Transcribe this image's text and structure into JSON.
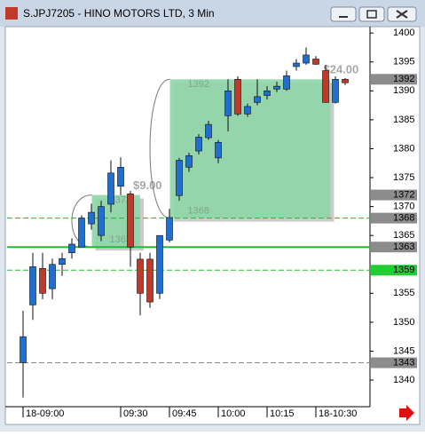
{
  "chart_data": {
    "type": "candlestick",
    "title": "S.JPJ7205 - HINO MOTORS LTD, 3 Min",
    "categories": [
      "18-09:00",
      null,
      null,
      null,
      null,
      null,
      null,
      null,
      null,
      null,
      "09:30",
      null,
      null,
      null,
      null,
      "09:45",
      null,
      null,
      null,
      null,
      "10:00",
      null,
      null,
      null,
      null,
      "10:15",
      null,
      null,
      null,
      null,
      "18-10:30",
      null,
      null,
      null
    ],
    "open": [
      1343,
      1353,
      1359.3,
      1355.8,
      1360,
      1362,
      1363,
      1367,
      1365,
      1370.4,
      1373.5,
      1372.2,
      1360.9,
      1360.9,
      1355,
      1364.2,
      1371.9,
      1376.8,
      1379.6,
      1381.9,
      1378.4,
      1385.7,
      1392,
      1386,
      1388,
      1389.2,
      1390.3,
      1390.3,
      1394.2,
      1394.8,
      1395.5,
      1393.5,
      1388,
      1392
    ],
    "high": [
      1352,
      1362,
      1362,
      1361,
      1362,
      1364.5,
      1368.5,
      1370.5,
      1371,
      1378,
      1378.5,
      1372.7,
      1362,
      1362,
      1365,
      1369.6,
      1378.4,
      1379.3,
      1382.5,
      1384.8,
      1381.5,
      1392,
      1392.5,
      1387.8,
      1392,
      1390.8,
      1391.6,
      1393.5,
      1395.5,
      1397.5,
      1396,
      1394.5,
      1392.5,
      1392.2
    ],
    "low": [
      1337,
      1350.4,
      1354,
      1354,
      1358,
      1361,
      1363,
      1366,
      1364,
      1369,
      1372,
      1359.6,
      1351.2,
      1352.5,
      1354,
      1363.8,
      1371,
      1376,
      1379,
      1381.5,
      1377.5,
      1383,
      1385.7,
      1385.5,
      1387.5,
      1388.5,
      1389.8,
      1390,
      1393.5,
      1394.5,
      1394.5,
      1388,
      1387.8,
      1391
    ],
    "close": [
      1347.5,
      1359.6,
      1355,
      1360,
      1361,
      1363.5,
      1368,
      1369,
      1370,
      1375.8,
      1376.8,
      1363,
      1355,
      1353.5,
      1365,
      1368.1,
      1378,
      1378.8,
      1382,
      1384.2,
      1381.1,
      1390,
      1386,
      1387.3,
      1389,
      1390,
      1390.8,
      1392.6,
      1394.8,
      1396.2,
      1394.6,
      1388,
      1392,
      1391.4
    ],
    "up_color": "#1f6fd1",
    "down_color": "#c0392b",
    "ylim": [
      1335.4,
      1401.1
    ],
    "yticks": [
      1340,
      1345,
      1350,
      1355,
      1365,
      1370,
      1375,
      1380,
      1385,
      1390,
      1395,
      1400
    ],
    "trade_boxes": [
      {
        "high": 1372,
        "low": 1363,
        "profit_label": "$9.00"
      },
      {
        "high": 1392,
        "low": 1368,
        "profit_label": "$24.00"
      }
    ],
    "price_levels": [
      {
        "value": 1392,
        "color": "#8c8c8c"
      },
      {
        "value": 1372,
        "color": "#8c8c8c"
      },
      {
        "value": 1368,
        "color": "#8c8c8c"
      },
      {
        "value": 1363,
        "color": "#8c8c8c"
      },
      {
        "value": 1359,
        "color": "#22cc33"
      },
      {
        "value": 1343,
        "color": "#8c8c8c"
      }
    ]
  }
}
